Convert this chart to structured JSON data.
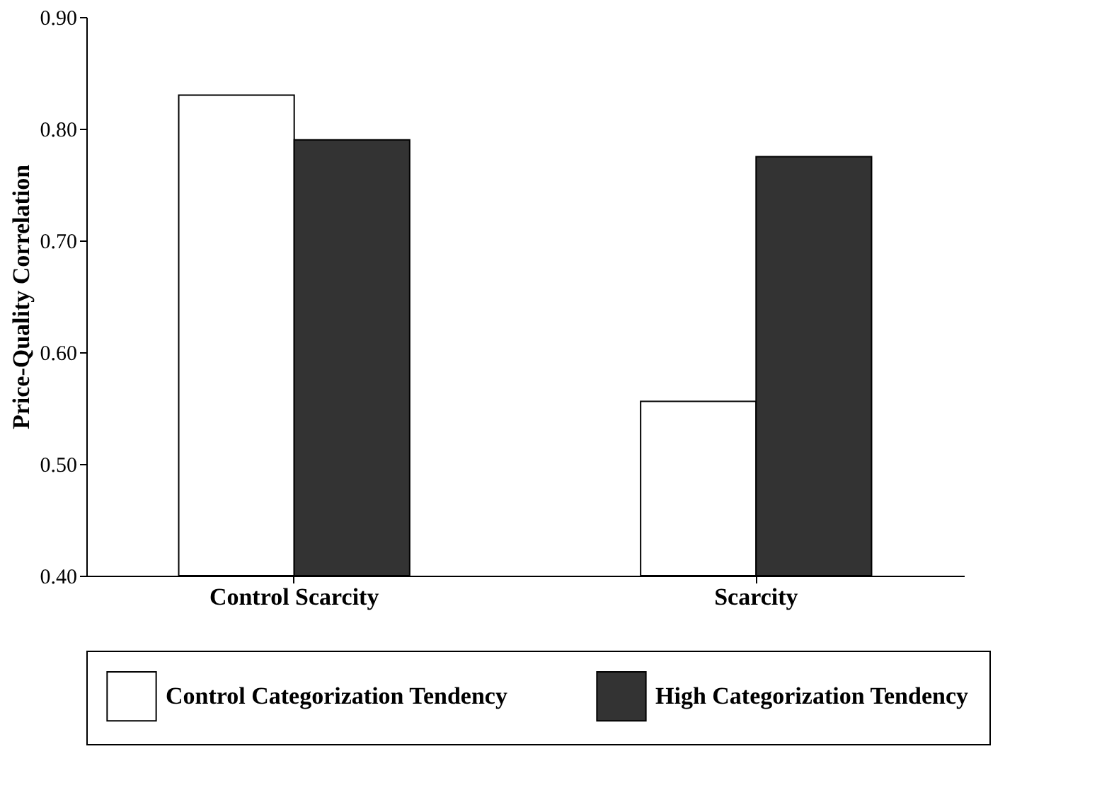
{
  "chart_data": {
    "type": "bar",
    "ylabel": "Price-Quality Correlation",
    "categories": [
      "Control Scarcity",
      "Scarcity"
    ],
    "series": [
      {
        "name": "Control Categorization Tendency",
        "color": "#ffffff",
        "values": [
          0.83,
          0.556
        ]
      },
      {
        "name": "High Categorization Tendency",
        "color": "#333333",
        "values": [
          0.79,
          0.775
        ]
      }
    ],
    "ylim": [
      0.4,
      0.9
    ],
    "yticks": [
      {
        "value": 0.4,
        "label": "0.40"
      },
      {
        "value": 0.5,
        "label": "0.50"
      },
      {
        "value": 0.6,
        "label": "0.60"
      },
      {
        "value": 0.7,
        "label": "0.70"
      },
      {
        "value": 0.8,
        "label": "0.80"
      },
      {
        "value": 0.9,
        "label": "0.90"
      }
    ],
    "grid": false,
    "legend": "bottom"
  }
}
